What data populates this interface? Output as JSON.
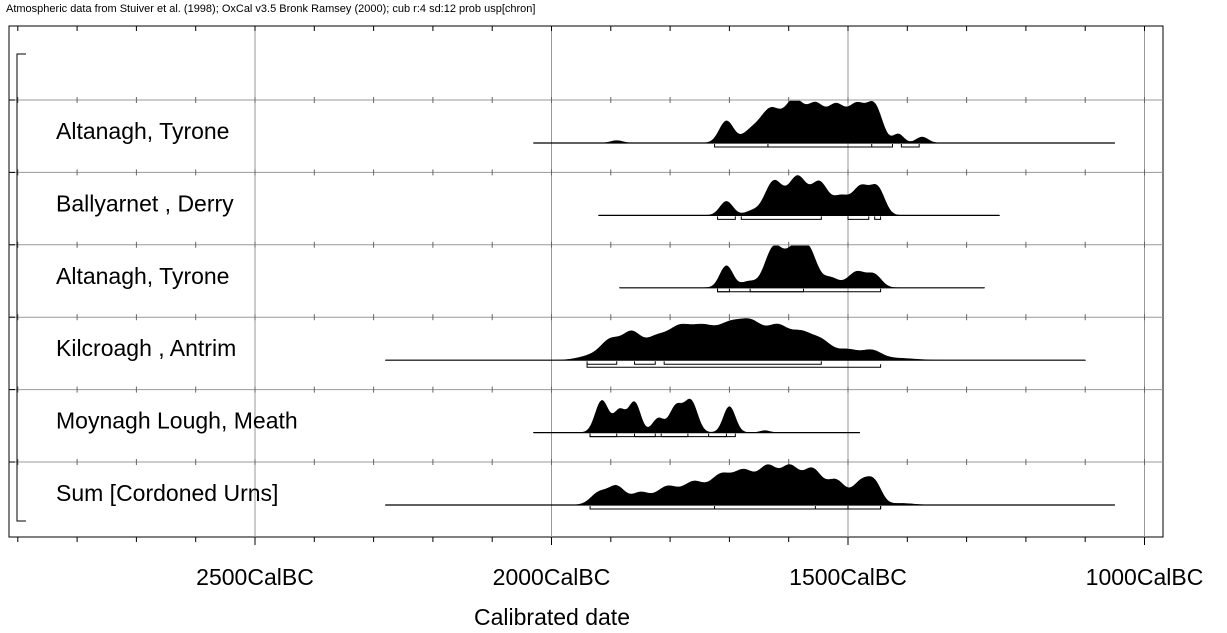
{
  "header": {
    "text": "Atmospheric data from Stuiver et al. (1998); OxCal v3.5 Bronk Ramsey (2000); cub r:4 sd:12 prob usp[chron]"
  },
  "chart_data": {
    "type": "area",
    "xlabel": "Calibrated date",
    "x_axis_direction": "decreasing-left-to-right",
    "xlim": [
      2900,
      950
    ],
    "x_ticks": [
      {
        "value": 2500,
        "label": "2500CalBC"
      },
      {
        "value": 2000,
        "label": "2000CalBC"
      },
      {
        "value": 1500,
        "label": "1500CalBC"
      },
      {
        "value": 1000,
        "label": "1000CalBC"
      }
    ],
    "grid": true,
    "fill_color": "#000000",
    "series": [
      {
        "name": "Altanagh, Tyrone",
        "range": [
          2030,
          1050
        ],
        "peaks": [
          {
            "x": 1890,
            "h": 0.06,
            "w": 10
          },
          {
            "x": 1705,
            "h": 0.55,
            "w": 12
          },
          {
            "x": 1665,
            "h": 0.25,
            "w": 14
          },
          {
            "x": 1630,
            "h": 0.85,
            "w": 18
          },
          {
            "x": 1590,
            "h": 1.0,
            "w": 15
          },
          {
            "x": 1555,
            "h": 0.9,
            "w": 15
          },
          {
            "x": 1520,
            "h": 0.88,
            "w": 15
          },
          {
            "x": 1485,
            "h": 0.9,
            "w": 15
          },
          {
            "x": 1455,
            "h": 0.88,
            "w": 13
          },
          {
            "x": 1415,
            "h": 0.22,
            "w": 9
          },
          {
            "x": 1375,
            "h": 0.15,
            "w": 10
          }
        ],
        "ranges": [
          [
            1725,
            1425
          ],
          [
            1410,
            1380
          ]
        ],
        "ranges_main": [
          1635,
          1460
        ]
      },
      {
        "name": "Ballyarnet , Derry",
        "range": [
          1920,
          1245
        ],
        "peaks": [
          {
            "x": 1705,
            "h": 0.35,
            "w": 11
          },
          {
            "x": 1662,
            "h": 0.1,
            "w": 12
          },
          {
            "x": 1625,
            "h": 0.85,
            "w": 15
          },
          {
            "x": 1585,
            "h": 0.95,
            "w": 15
          },
          {
            "x": 1548,
            "h": 0.8,
            "w": 14
          },
          {
            "x": 1512,
            "h": 0.45,
            "w": 14
          },
          {
            "x": 1478,
            "h": 0.7,
            "w": 14
          },
          {
            "x": 1450,
            "h": 0.65,
            "w": 12
          }
        ],
        "ranges": [
          [
            1720,
            1690
          ],
          [
            1680,
            1545
          ],
          [
            1500,
            1465
          ],
          [
            1455,
            1445
          ]
        ]
      },
      {
        "name": "Altanagh, Tyrone",
        "range": [
          1885,
          1270
        ],
        "peaks": [
          {
            "x": 1705,
            "h": 0.55,
            "w": 11
          },
          {
            "x": 1668,
            "h": 0.15,
            "w": 12
          },
          {
            "x": 1625,
            "h": 1.0,
            "w": 15
          },
          {
            "x": 1590,
            "h": 0.92,
            "w": 15
          },
          {
            "x": 1565,
            "h": 0.8,
            "w": 13
          },
          {
            "x": 1530,
            "h": 0.25,
            "w": 14
          },
          {
            "x": 1485,
            "h": 0.4,
            "w": 15
          },
          {
            "x": 1455,
            "h": 0.3,
            "w": 12
          }
        ],
        "ranges": [
          [
            1720,
            1700
          ],
          [
            1665,
            1575
          ],
          [
            1720,
            1445
          ]
        ]
      },
      {
        "name": "Kilcroagh , Antrim",
        "range": [
          2280,
          1100
        ],
        "peaks": [
          {
            "x": 1930,
            "h": 0.12,
            "w": 22
          },
          {
            "x": 1900,
            "h": 0.45,
            "w": 16
          },
          {
            "x": 1865,
            "h": 0.65,
            "w": 16
          },
          {
            "x": 1825,
            "h": 0.5,
            "w": 18
          },
          {
            "x": 1785,
            "h": 0.75,
            "w": 20
          },
          {
            "x": 1745,
            "h": 0.7,
            "w": 20
          },
          {
            "x": 1700,
            "h": 0.82,
            "w": 22
          },
          {
            "x": 1660,
            "h": 0.8,
            "w": 20
          },
          {
            "x": 1618,
            "h": 0.75,
            "w": 18
          },
          {
            "x": 1580,
            "h": 0.6,
            "w": 18
          },
          {
            "x": 1545,
            "h": 0.45,
            "w": 18
          },
          {
            "x": 1500,
            "h": 0.25,
            "w": 18
          },
          {
            "x": 1460,
            "h": 0.22,
            "w": 16
          },
          {
            "x": 1420,
            "h": 0.05,
            "w": 30
          }
        ],
        "ranges": [
          [
            1940,
            1890
          ],
          [
            1860,
            1825
          ],
          [
            1810,
            1545
          ],
          [
            1940,
            1445
          ]
        ]
      },
      {
        "name": "Moynagh Lough, Meath",
        "range": [
          2030,
          1480
        ],
        "peaks": [
          {
            "x": 1915,
            "h": 0.8,
            "w": 11
          },
          {
            "x": 1885,
            "h": 0.55,
            "w": 10
          },
          {
            "x": 1860,
            "h": 0.75,
            "w": 10
          },
          {
            "x": 1820,
            "h": 0.35,
            "w": 10
          },
          {
            "x": 1790,
            "h": 0.65,
            "w": 11
          },
          {
            "x": 1765,
            "h": 0.78,
            "w": 11
          },
          {
            "x": 1700,
            "h": 0.65,
            "w": 10
          },
          {
            "x": 1640,
            "h": 0.05,
            "w": 8
          }
        ],
        "ranges": [
          [
            1935,
            1890
          ],
          [
            1860,
            1825
          ],
          [
            1815,
            1770
          ],
          [
            1735,
            1705
          ],
          [
            1935,
            1690
          ]
        ]
      },
      {
        "name": "Sum [Cordoned Urns]",
        "range": [
          2280,
          1050
        ],
        "peaks": [
          {
            "x": 1920,
            "h": 0.3,
            "w": 14
          },
          {
            "x": 1890,
            "h": 0.45,
            "w": 14
          },
          {
            "x": 1850,
            "h": 0.3,
            "w": 15
          },
          {
            "x": 1805,
            "h": 0.45,
            "w": 18
          },
          {
            "x": 1760,
            "h": 0.55,
            "w": 18
          },
          {
            "x": 1715,
            "h": 0.7,
            "w": 18
          },
          {
            "x": 1675,
            "h": 0.8,
            "w": 18
          },
          {
            "x": 1635,
            "h": 0.88,
            "w": 16
          },
          {
            "x": 1598,
            "h": 0.9,
            "w": 16
          },
          {
            "x": 1560,
            "h": 0.85,
            "w": 16
          },
          {
            "x": 1520,
            "h": 0.6,
            "w": 16
          },
          {
            "x": 1478,
            "h": 0.55,
            "w": 14
          },
          {
            "x": 1455,
            "h": 0.5,
            "w": 12
          },
          {
            "x": 1410,
            "h": 0.04,
            "w": 20
          }
        ],
        "ranges": [
          [
            1935,
            1445
          ],
          [
            1725,
            1555
          ],
          [
            1500,
            1445
          ]
        ]
      }
    ]
  }
}
